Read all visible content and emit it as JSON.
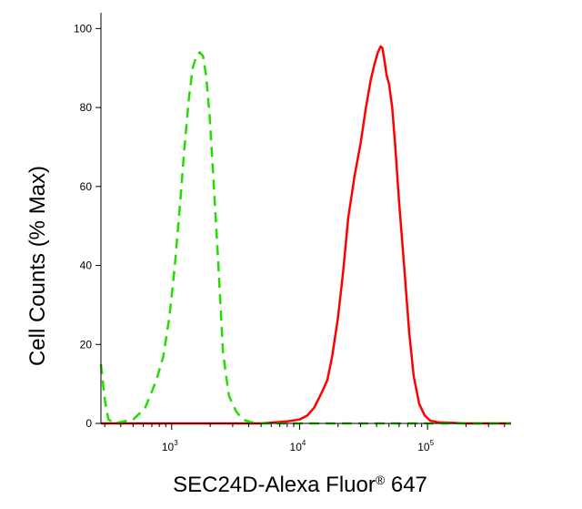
{
  "chart_data": {
    "type": "line",
    "title": "",
    "xlabel": "SEC24D-Alexa Fluor",
    "xlabel_mark": "®",
    "xlabel_suffix": " 647",
    "ylabel": "Cell Counts (% Max)",
    "x_scale": "log",
    "xlim": [
      280,
      450000
    ],
    "ylim": [
      0,
      104
    ],
    "yticks": [
      0,
      20,
      40,
      60,
      80,
      100
    ],
    "ytick_labels": [
      "0",
      "20",
      "40",
      "60",
      "80",
      "100"
    ],
    "xticks": [
      {
        "value": 1000,
        "base": "10",
        "exp": "3"
      },
      {
        "value": 10000,
        "base": "10",
        "exp": "4"
      },
      {
        "value": 100000,
        "base": "10",
        "exp": "5"
      }
    ],
    "series": [
      {
        "color": "#ff0000",
        "dash": "solid",
        "x": [
          280,
          5000,
          8000,
          10000,
          11500,
          13000,
          14500,
          15500,
          16500,
          18000,
          20000,
          22000,
          24000,
          27000,
          30000,
          33000,
          36000,
          38500,
          41000,
          43000,
          44500,
          46000,
          48000,
          50000,
          53000,
          56000,
          60000,
          66000,
          72000,
          78000,
          86000,
          95000,
          105000,
          120000,
          200000,
          450000
        ],
        "y": [
          0,
          0,
          0.5,
          1,
          2,
          4,
          7,
          9,
          11,
          17,
          27,
          39,
          52,
          63,
          71,
          80,
          87,
          91,
          94,
          95.5,
          95,
          92,
          88,
          86,
          80,
          70,
          56,
          39,
          23,
          12,
          5,
          2,
          0.7,
          0.3,
          0,
          0
        ]
      },
      {
        "color": "#22dd00",
        "dash": "dashed",
        "x": [
          280,
          300,
          320,
          360,
          420,
          500,
          560,
          620,
          680,
          760,
          860,
          960,
          1060,
          1160,
          1260,
          1360,
          1460,
          1560,
          1660,
          1760,
          1860,
          1980,
          2140,
          2320,
          2520,
          2800,
          3200,
          3600,
          4200,
          5000,
          10000,
          100000,
          450000
        ],
        "y": [
          15,
          6,
          1,
          0,
          0.5,
          1,
          2.5,
          4,
          7,
          11,
          17,
          27,
          40,
          55,
          70,
          82,
          90,
          93,
          94,
          93,
          88,
          78,
          60,
          40,
          18,
          7,
          3,
          1,
          0.3,
          0,
          0,
          0,
          0
        ]
      }
    ]
  }
}
